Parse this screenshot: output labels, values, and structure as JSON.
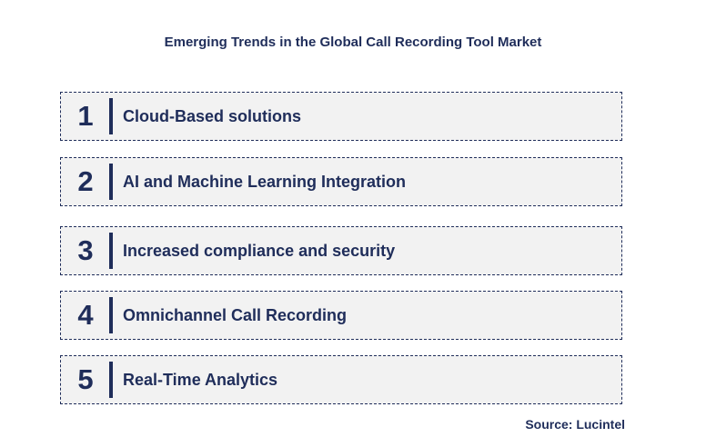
{
  "title": "Emerging Trends in the Global Call Recording Tool Market",
  "trends": [
    {
      "number": "1",
      "label": "Cloud-Based solutions"
    },
    {
      "number": "2",
      "label": "AI and Machine Learning Integration"
    },
    {
      "number": "3",
      "label": "Increased compliance and security"
    },
    {
      "number": "4",
      "label": "Omnichannel Call Recording"
    },
    {
      "number": "5",
      "label": "Real-Time Analytics"
    }
  ],
  "source": "Source: Lucintel",
  "colors": {
    "text": "#1f2d5a",
    "box_fill": "#f2f2f2",
    "border": "#1f2d5a"
  }
}
